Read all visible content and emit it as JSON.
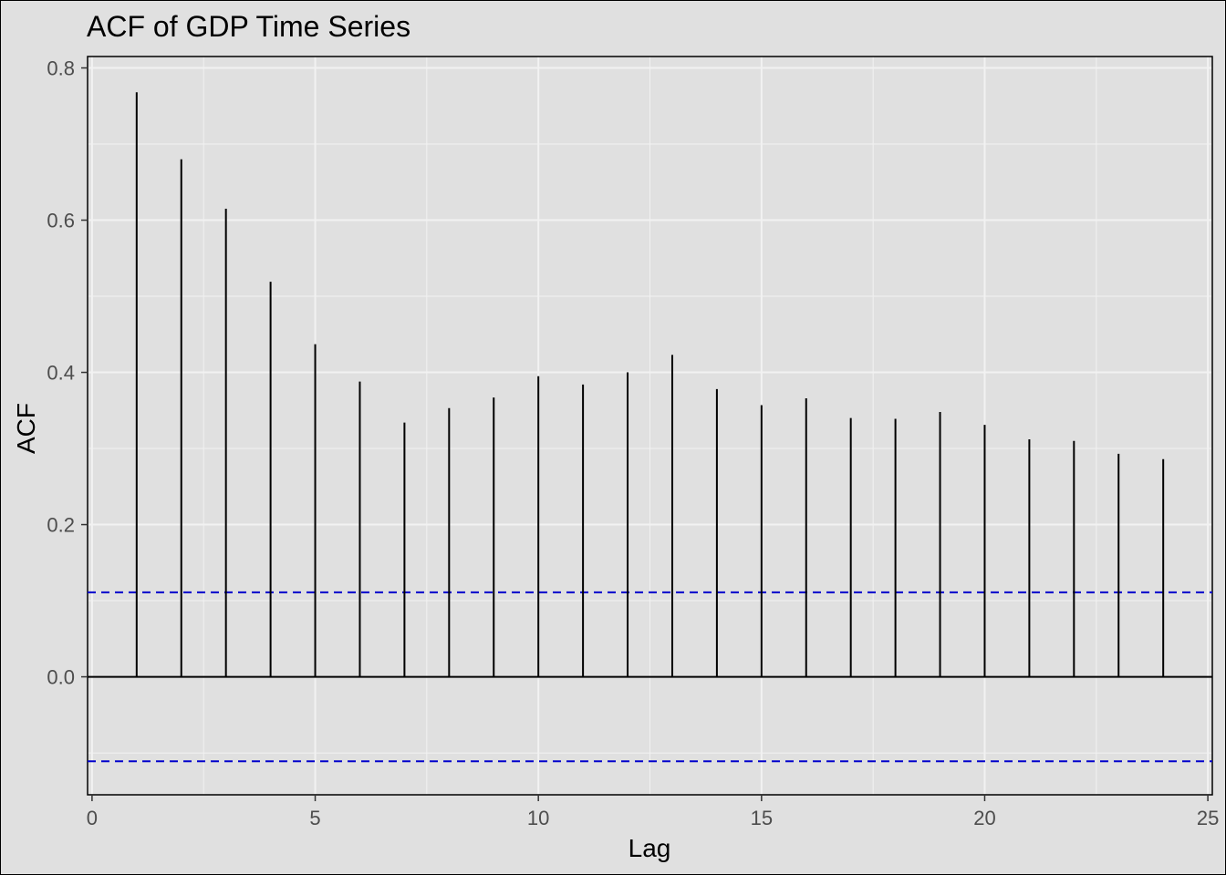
{
  "chart_data": {
    "type": "bar",
    "title": "ACF of GDP Time Series",
    "xlabel": "Lag",
    "ylabel": "ACF",
    "x": [
      1,
      2,
      3,
      4,
      5,
      6,
      7,
      8,
      9,
      10,
      11,
      12,
      13,
      14,
      15,
      16,
      17,
      18,
      19,
      20,
      21,
      22,
      23,
      24
    ],
    "values": [
      0.768,
      0.68,
      0.615,
      0.519,
      0.437,
      0.388,
      0.334,
      0.353,
      0.367,
      0.395,
      0.384,
      0.4,
      0.423,
      0.378,
      0.357,
      0.366,
      0.34,
      0.339,
      0.348,
      0.331,
      0.312,
      0.31,
      0.293,
      0.286
    ],
    "xlim": [
      -0.1,
      25.1
    ],
    "ylim": [
      -0.155,
      0.815
    ],
    "xticks": [
      0,
      5,
      10,
      15,
      20,
      25
    ],
    "xtick_labels": [
      "0",
      "5",
      "10",
      "15",
      "20",
      "25"
    ],
    "yticks": [
      0.0,
      0.2,
      0.4,
      0.6,
      0.8
    ],
    "ytick_labels": [
      "0.0",
      "0.2",
      "0.4",
      "0.6",
      "0.8"
    ],
    "confidence_bounds": [
      0.111,
      -0.111
    ],
    "grid": true,
    "colors": {
      "background": "#e0e0e0",
      "grid": "#f2f2f2",
      "bars": "#000000",
      "confidence": "#0000cc",
      "text": "#4d4d4d"
    }
  }
}
